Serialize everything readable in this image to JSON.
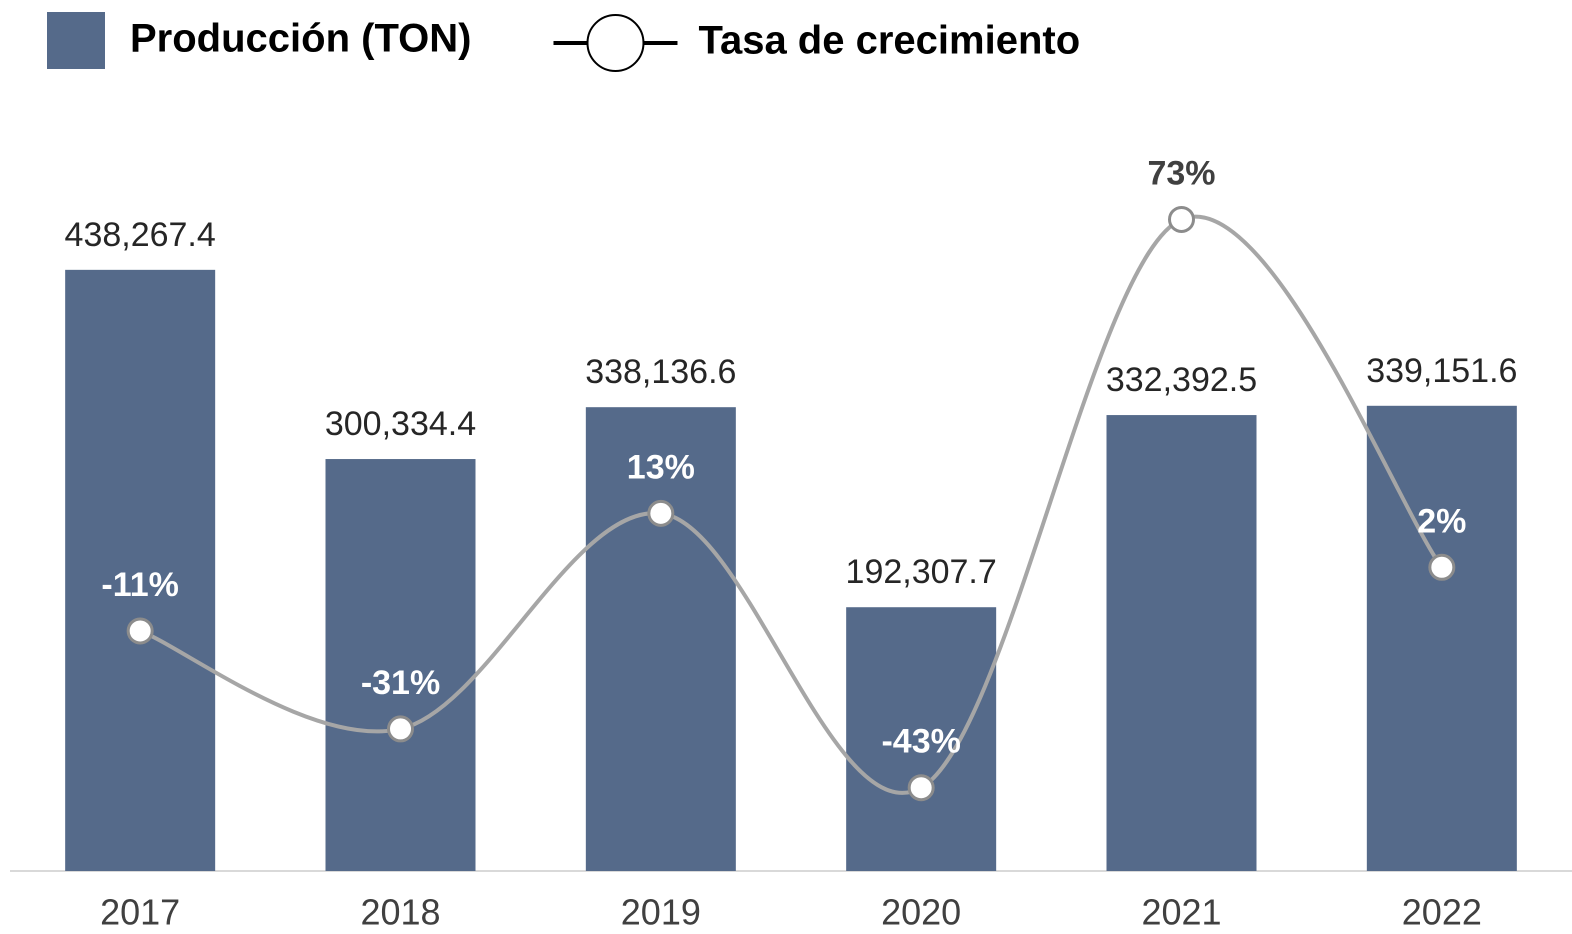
{
  "chart_data": {
    "type": "bar",
    "categories": [
      "2017",
      "2018",
      "2019",
      "2020",
      "2021",
      "2022"
    ],
    "series": [
      {
        "name": "Producción (TON)",
        "type": "bar",
        "color": "#556a8a",
        "values": [
          438267.4,
          300334.4,
          338136.6,
          192307.7,
          332392.5,
          339151.6
        ],
        "value_labels": [
          "438,267.4",
          "300,334.4",
          "338,136.6",
          "192,307.7",
          "332,392.5",
          "339,151.6"
        ]
      },
      {
        "name": "Tasa de crecimiento",
        "type": "line",
        "axis": "y2",
        "color": "#a6a6a6",
        "values": [
          -11,
          -31,
          13,
          -43,
          73,
          2
        ],
        "value_labels": [
          "-11%",
          "-31%",
          "13%",
          "-43%",
          "73%",
          "2%"
        ]
      }
    ],
    "ylim": [
      0,
      600000
    ],
    "y2lim": [
      -60,
      108
    ],
    "legend": "top-left"
  }
}
